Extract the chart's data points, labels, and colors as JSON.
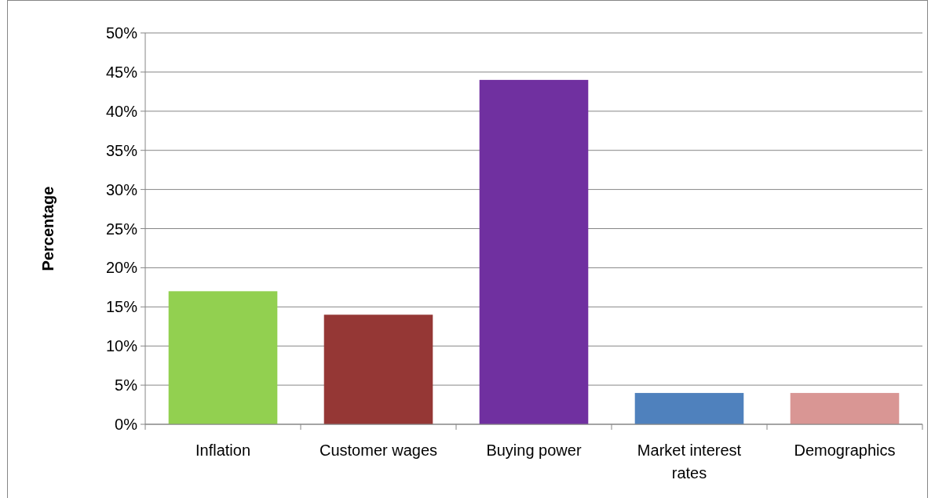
{
  "chart_data": {
    "type": "bar",
    "ylabel": "Percentage",
    "categories": [
      "Inflation",
      "Customer wages",
      "Buying power",
      "Market interest rates",
      "Demographics"
    ],
    "values": [
      17,
      14,
      44,
      4,
      4
    ],
    "colors": [
      "#92d050",
      "#953735",
      "#7030a0",
      "#4f81bd",
      "#d99694"
    ],
    "ylim": [
      0,
      50
    ],
    "yticks": [
      {
        "value": 0,
        "label": "0%"
      },
      {
        "value": 5,
        "label": "5%"
      },
      {
        "value": 10,
        "label": "10%"
      },
      {
        "value": 15,
        "label": "15%"
      },
      {
        "value": 20,
        "label": "20%"
      },
      {
        "value": 25,
        "label": "25%"
      },
      {
        "value": 30,
        "label": "30%"
      },
      {
        "value": 35,
        "label": "35%"
      },
      {
        "value": 40,
        "label": "40%"
      },
      {
        "value": 45,
        "label": "45%"
      },
      {
        "value": 50,
        "label": "50%"
      }
    ],
    "grid": "y"
  }
}
